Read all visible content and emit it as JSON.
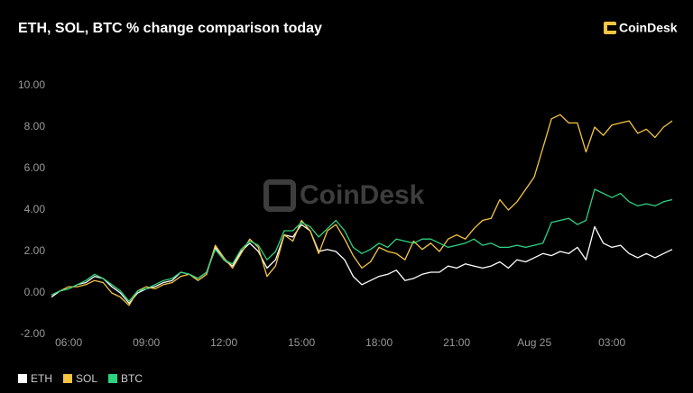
{
  "chart_data": {
    "type": "line",
    "title": "ETH, SOL, BTC % change comparison today",
    "logo_text": "CoinDesk",
    "watermark": "CoinDesk",
    "categories": [
      null,
      null,
      "06:00",
      null,
      null,
      null,
      null,
      null,
      null,
      null,
      null,
      "09:00",
      null,
      null,
      null,
      null,
      null,
      null,
      null,
      null,
      "12:00",
      null,
      null,
      null,
      null,
      null,
      null,
      null,
      null,
      "15:00",
      null,
      null,
      null,
      null,
      null,
      null,
      null,
      null,
      "18:00",
      null,
      null,
      null,
      null,
      null,
      null,
      null,
      null,
      "21:00",
      null,
      null,
      null,
      null,
      null,
      null,
      null,
      null,
      "Aug 25",
      null,
      null,
      null,
      null,
      null,
      null,
      null,
      null,
      "03:00",
      null,
      null,
      null,
      null,
      null,
      null,
      null
    ],
    "series": [
      {
        "name": "ETH",
        "color": "#ffffff",
        "values": [
          -0.2,
          0.1,
          0.2,
          0.4,
          0.5,
          0.8,
          0.7,
          0.3,
          0.0,
          -0.5,
          0.0,
          0.2,
          0.3,
          0.5,
          0.6,
          1.0,
          0.9,
          0.7,
          1.0,
          2.2,
          1.6,
          1.3,
          2.0,
          2.4,
          2.0,
          1.2,
          1.6,
          2.8,
          2.7,
          3.3,
          3.0,
          2.0,
          2.1,
          2.0,
          1.6,
          0.8,
          0.4,
          0.6,
          0.8,
          0.9,
          1.1,
          0.6,
          0.7,
          0.9,
          1.0,
          1.0,
          1.3,
          1.2,
          1.4,
          1.3,
          1.2,
          1.3,
          1.5,
          1.2,
          1.6,
          1.5,
          1.7,
          1.9,
          1.8,
          2.0,
          1.9,
          2.2,
          1.6,
          3.2,
          2.4,
          2.2,
          2.3,
          1.9,
          1.7,
          1.9,
          1.7,
          1.9,
          2.1
        ]
      },
      {
        "name": "SOL",
        "color": "#f5c542",
        "values": [
          -0.1,
          0.1,
          0.3,
          0.3,
          0.4,
          0.6,
          0.5,
          0.0,
          -0.2,
          -0.6,
          0.1,
          0.3,
          0.2,
          0.4,
          0.5,
          0.8,
          0.9,
          0.6,
          0.9,
          2.3,
          1.7,
          1.2,
          1.9,
          2.6,
          2.2,
          0.8,
          1.3,
          2.8,
          2.5,
          3.5,
          3.0,
          1.9,
          3.0,
          3.3,
          2.6,
          1.8,
          1.2,
          1.5,
          2.2,
          2.0,
          1.9,
          1.6,
          2.5,
          2.1,
          2.4,
          2.0,
          2.6,
          2.8,
          2.6,
          3.1,
          3.5,
          3.6,
          4.5,
          4.0,
          4.4,
          5.0,
          5.6,
          7.0,
          8.4,
          8.6,
          8.2,
          8.2,
          6.8,
          8.0,
          7.6,
          8.1,
          8.2,
          8.3,
          7.7,
          7.9,
          7.5,
          8.0,
          8.3
        ]
      },
      {
        "name": "BTC",
        "color": "#2ed37f",
        "values": [
          -0.1,
          0.1,
          0.2,
          0.4,
          0.6,
          0.9,
          0.7,
          0.4,
          0.1,
          -0.4,
          0.1,
          0.2,
          0.4,
          0.6,
          0.7,
          1.0,
          0.9,
          0.7,
          1.0,
          2.1,
          1.6,
          1.4,
          2.1,
          2.5,
          2.3,
          1.6,
          2.0,
          3.0,
          3.0,
          3.4,
          3.2,
          2.7,
          3.1,
          3.5,
          3.0,
          2.2,
          1.9,
          2.1,
          2.4,
          2.2,
          2.6,
          2.5,
          2.4,
          2.6,
          2.6,
          2.4,
          2.2,
          2.3,
          2.4,
          2.6,
          2.3,
          2.4,
          2.2,
          2.2,
          2.3,
          2.2,
          2.3,
          2.4,
          3.4,
          3.5,
          3.6,
          3.3,
          3.5,
          5.0,
          4.8,
          4.6,
          4.8,
          4.4,
          4.2,
          4.3,
          4.2,
          4.4,
          4.5
        ]
      }
    ],
    "ylim": [
      -2,
      10
    ],
    "yticks": [
      {
        "value": -2,
        "label": "-2.00"
      },
      {
        "value": 0,
        "label": "0.00"
      },
      {
        "value": 2,
        "label": "2.00"
      },
      {
        "value": 4,
        "label": "4.00"
      },
      {
        "value": 6,
        "label": "6.00"
      },
      {
        "value": 8,
        "label": "8.00"
      },
      {
        "value": 10,
        "label": "10.00"
      }
    ],
    "grid": false,
    "legend": "bottom-left"
  }
}
